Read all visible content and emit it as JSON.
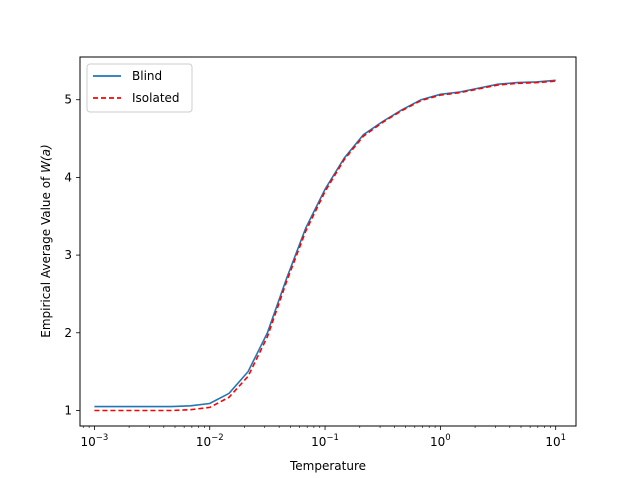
{
  "chart_data": {
    "type": "line",
    "xlabel": "Temperature",
    "ylabel_prefix": "Empirical Average Value of ",
    "ylabel_math": "W(a)",
    "x_scale": "log",
    "xlim": [
      0.00075,
      15
    ],
    "ylim": [
      0.8,
      5.55
    ],
    "x_ticks": [
      {
        "value": 0.001,
        "base": "10",
        "exp": "−3"
      },
      {
        "value": 0.01,
        "base": "10",
        "exp": "−2"
      },
      {
        "value": 0.1,
        "base": "10",
        "exp": "−1"
      },
      {
        "value": 1,
        "base": "10",
        "exp": "0"
      },
      {
        "value": 10,
        "base": "10",
        "exp": "1"
      }
    ],
    "y_ticks": [
      1,
      2,
      3,
      4,
      5
    ],
    "grid": false,
    "legend_position": "upper-left",
    "x": [
      0.001,
      0.00147,
      0.00215,
      0.00316,
      0.00464,
      0.00681,
      0.01,
      0.0147,
      0.0215,
      0.0316,
      0.0464,
      0.0681,
      0.1,
      0.147,
      0.215,
      0.316,
      0.464,
      0.681,
      1.0,
      1.47,
      2.15,
      3.16,
      4.64,
      6.81,
      10
    ],
    "series": [
      {
        "name": "Blind",
        "color": "#1f77b4",
        "style": "solid",
        "values": [
          1.05,
          1.05,
          1.05,
          1.05,
          1.05,
          1.06,
          1.09,
          1.22,
          1.5,
          2.0,
          2.7,
          3.35,
          3.85,
          4.25,
          4.55,
          4.72,
          4.87,
          5.0,
          5.07,
          5.1,
          5.15,
          5.2,
          5.22,
          5.23,
          5.25
        ]
      },
      {
        "name": "Isolated",
        "color": "#ff0000",
        "style": "dashed",
        "values": [
          1.0,
          1.0,
          1.0,
          1.0,
          1.0,
          1.01,
          1.04,
          1.17,
          1.44,
          1.95,
          2.66,
          3.31,
          3.82,
          4.23,
          4.53,
          4.71,
          4.86,
          4.99,
          5.06,
          5.09,
          5.14,
          5.19,
          5.21,
          5.22,
          5.24
        ]
      }
    ]
  }
}
